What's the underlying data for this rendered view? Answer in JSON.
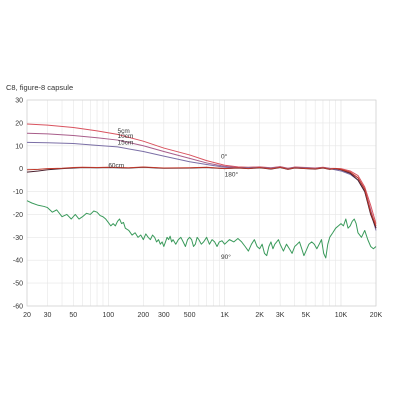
{
  "chart_data": {
    "type": "line",
    "title": "C8, figure-8 capsule",
    "xlabel": "",
    "ylabel": "",
    "x_scale": "log",
    "xlim": [
      20,
      20000
    ],
    "ylim": [
      -60,
      30
    ],
    "grid": true,
    "x_ticks": [
      {
        "v": 20,
        "label": "20"
      },
      {
        "v": 30,
        "label": "30"
      },
      {
        "v": 50,
        "label": "50"
      },
      {
        "v": 100,
        "label": "100"
      },
      {
        "v": 200,
        "label": "200"
      },
      {
        "v": 300,
        "label": "300"
      },
      {
        "v": 500,
        "label": "500"
      },
      {
        "v": 1000,
        "label": "1K"
      },
      {
        "v": 2000,
        "label": "2K"
      },
      {
        "v": 3000,
        "label": "3K"
      },
      {
        "v": 5000,
        "label": "5K"
      },
      {
        "v": 10000,
        "label": "10K"
      },
      {
        "v": 20000,
        "label": "20K"
      }
    ],
    "y_ticks": [
      30,
      20,
      10,
      0,
      -10,
      -20,
      -30,
      -40,
      -50,
      -60
    ],
    "annotations": [
      {
        "text": "5cm",
        "x": 120,
        "y": 15.5
      },
      {
        "text": "10cm",
        "x": 120,
        "y": 13.5
      },
      {
        "text": "15cm",
        "x": 120,
        "y": 10.5
      },
      {
        "text": "0°",
        "x": 930,
        "y": 4.5
      },
      {
        "text": "180°",
        "x": 1000,
        "y": -3.5
      },
      {
        "text": "60cm",
        "x": 100,
        "y": 0.5
      },
      {
        "text": "90°",
        "x": 930,
        "y": -39.5
      }
    ],
    "series": [
      {
        "color": "#d9535f",
        "points": [
          [
            20,
            19.5
          ],
          [
            30,
            19
          ],
          [
            50,
            18
          ],
          [
            80,
            16.5
          ],
          [
            120,
            15
          ],
          [
            200,
            12
          ],
          [
            300,
            9
          ],
          [
            500,
            6
          ],
          [
            700,
            3.5
          ],
          [
            1000,
            1.5
          ],
          [
            1300,
            0.8
          ],
          [
            1600,
            0.6
          ],
          [
            2000,
            0.8
          ],
          [
            2500,
            0.4
          ],
          [
            3000,
            0.9
          ],
          [
            3500,
            0.2
          ],
          [
            4000,
            0.7
          ],
          [
            5000,
            0.5
          ],
          [
            6000,
            0.3
          ],
          [
            7000,
            0.6
          ],
          [
            8000,
            0.2
          ],
          [
            10000,
            0
          ],
          [
            12000,
            -1
          ],
          [
            14000,
            -3
          ],
          [
            16000,
            -8
          ],
          [
            18000,
            -16
          ],
          [
            20000,
            -24
          ]
        ]
      },
      {
        "color": "#a85d8a",
        "points": [
          [
            20,
            15.5
          ],
          [
            30,
            15.2
          ],
          [
            50,
            14.5
          ],
          [
            80,
            13.5
          ],
          [
            120,
            12.5
          ],
          [
            200,
            10
          ],
          [
            300,
            7.5
          ],
          [
            500,
            4.5
          ],
          [
            700,
            2.5
          ],
          [
            1000,
            1
          ],
          [
            1300,
            0.5
          ],
          [
            1600,
            0.5
          ],
          [
            2000,
            0.6
          ],
          [
            2500,
            0.3
          ],
          [
            3000,
            0.8
          ],
          [
            3500,
            0.1
          ],
          [
            4000,
            0.6
          ],
          [
            5000,
            0.4
          ],
          [
            6000,
            0.2
          ],
          [
            7000,
            0.5
          ],
          [
            8000,
            0.1
          ],
          [
            10000,
            -0.5
          ],
          [
            12000,
            -2
          ],
          [
            14000,
            -4
          ],
          [
            16000,
            -9
          ],
          [
            18000,
            -18
          ],
          [
            20000,
            -26
          ]
        ]
      },
      {
        "color": "#7b6fa6",
        "points": [
          [
            20,
            11.5
          ],
          [
            30,
            11.3
          ],
          [
            50,
            11
          ],
          [
            80,
            10.2
          ],
          [
            120,
            9.5
          ],
          [
            200,
            7.5
          ],
          [
            300,
            5.5
          ],
          [
            500,
            3
          ],
          [
            700,
            1.8
          ],
          [
            1000,
            0.6
          ],
          [
            1300,
            0.3
          ],
          [
            1600,
            0.4
          ],
          [
            2000,
            0.5
          ],
          [
            2500,
            0.2
          ],
          [
            3000,
            0.6
          ],
          [
            3500,
            0
          ],
          [
            4000,
            0.5
          ],
          [
            5000,
            0.3
          ],
          [
            6000,
            0.1
          ],
          [
            7000,
            0.4
          ],
          [
            8000,
            0
          ],
          [
            10000,
            -1
          ],
          [
            12000,
            -2.5
          ],
          [
            14000,
            -5
          ],
          [
            16000,
            -10
          ],
          [
            18000,
            -19
          ],
          [
            20000,
            -27
          ]
        ]
      },
      {
        "color": "#4a1f2c",
        "points": [
          [
            20,
            -1.5
          ],
          [
            25,
            -1
          ],
          [
            30,
            -0.5
          ],
          [
            40,
            0
          ],
          [
            50,
            0.3
          ],
          [
            60,
            0.5
          ],
          [
            80,
            0.4
          ],
          [
            100,
            0.5
          ],
          [
            150,
            0.3
          ],
          [
            200,
            0.6
          ],
          [
            300,
            0.2
          ],
          [
            500,
            0.3
          ],
          [
            700,
            0.5
          ],
          [
            1000,
            0
          ],
          [
            1300,
            0.3
          ],
          [
            1600,
            0
          ],
          [
            2000,
            0.4
          ],
          [
            2500,
            -0.2
          ],
          [
            3000,
            0.5
          ],
          [
            3500,
            -0.3
          ],
          [
            4000,
            0.3
          ],
          [
            5000,
            0
          ],
          [
            6000,
            -0.2
          ],
          [
            7000,
            0.3
          ],
          [
            8000,
            -0.3
          ],
          [
            9000,
            0
          ],
          [
            10000,
            -0.5
          ],
          [
            12000,
            -2
          ],
          [
            14000,
            -5
          ],
          [
            16000,
            -10
          ],
          [
            18000,
            -20
          ],
          [
            20000,
            -26
          ]
        ]
      },
      {
        "color": "#c0392b",
        "points": [
          [
            20,
            -0.5
          ],
          [
            25,
            -0.3
          ],
          [
            30,
            0
          ],
          [
            40,
            0.2
          ],
          [
            50,
            0.5
          ],
          [
            60,
            0.6
          ],
          [
            80,
            0.5
          ],
          [
            100,
            0.6
          ],
          [
            150,
            0.4
          ],
          [
            200,
            0.7
          ],
          [
            300,
            0.3
          ],
          [
            500,
            0.4
          ],
          [
            700,
            0.6
          ],
          [
            1000,
            0.1
          ],
          [
            1300,
            0.4
          ],
          [
            1600,
            0.1
          ],
          [
            2000,
            0.5
          ],
          [
            2500,
            -0.1
          ],
          [
            3000,
            0.6
          ],
          [
            3500,
            -0.2
          ],
          [
            4000,
            0.4
          ],
          [
            5000,
            0.1
          ],
          [
            6000,
            -0.1
          ],
          [
            7000,
            0.4
          ],
          [
            8000,
            -0.2
          ],
          [
            9000,
            0.1
          ],
          [
            10000,
            -0.3
          ],
          [
            12000,
            -1.5
          ],
          [
            14000,
            -4
          ],
          [
            16000,
            -9
          ],
          [
            18000,
            -19
          ],
          [
            20000,
            -25
          ]
        ]
      },
      {
        "color": "#3a9a5b",
        "points": [
          [
            20,
            -14
          ],
          [
            22,
            -15
          ],
          [
            25,
            -16
          ],
          [
            28,
            -16.5
          ],
          [
            30,
            -17
          ],
          [
            33,
            -19
          ],
          [
            36,
            -18
          ],
          [
            40,
            -21
          ],
          [
            44,
            -20
          ],
          [
            48,
            -22
          ],
          [
            52,
            -20
          ],
          [
            56,
            -22
          ],
          [
            60,
            -21
          ],
          [
            65,
            -19.5
          ],
          [
            70,
            -20
          ],
          [
            75,
            -18.5
          ],
          [
            80,
            -19
          ],
          [
            85,
            -20.5
          ],
          [
            90,
            -21
          ],
          [
            95,
            -22
          ],
          [
            100,
            -23.5
          ],
          [
            105,
            -25
          ],
          [
            110,
            -24
          ],
          [
            115,
            -25
          ],
          [
            120,
            -23
          ],
          [
            125,
            -22
          ],
          [
            130,
            -24
          ],
          [
            135,
            -23.5
          ],
          [
            140,
            -26
          ],
          [
            150,
            -27
          ],
          [
            160,
            -29
          ],
          [
            170,
            -28
          ],
          [
            180,
            -30
          ],
          [
            190,
            -29
          ],
          [
            200,
            -31
          ],
          [
            210,
            -28.5
          ],
          [
            220,
            -30
          ],
          [
            230,
            -31
          ],
          [
            240,
            -29
          ],
          [
            250,
            -30
          ],
          [
            260,
            -32
          ],
          [
            270,
            -31
          ],
          [
            280,
            -33
          ],
          [
            290,
            -32
          ],
          [
            300,
            -34
          ],
          [
            310,
            -32
          ],
          [
            320,
            -30
          ],
          [
            330,
            -31
          ],
          [
            340,
            -29.5
          ],
          [
            350,
            -32
          ],
          [
            360,
            -31
          ],
          [
            380,
            -33
          ],
          [
            400,
            -31
          ],
          [
            420,
            -30
          ],
          [
            440,
            -32
          ],
          [
            460,
            -34
          ],
          [
            480,
            -31
          ],
          [
            500,
            -30
          ],
          [
            520,
            -31
          ],
          [
            540,
            -34
          ],
          [
            560,
            -33
          ],
          [
            580,
            -30
          ],
          [
            600,
            -31
          ],
          [
            630,
            -33
          ],
          [
            660,
            -32
          ],
          [
            700,
            -30
          ],
          [
            740,
            -33
          ],
          [
            780,
            -31
          ],
          [
            820,
            -32
          ],
          [
            860,
            -34
          ],
          [
            900,
            -32
          ],
          [
            950,
            -31.5
          ],
          [
            1000,
            -33
          ],
          [
            1100,
            -31
          ],
          [
            1200,
            -32
          ],
          [
            1300,
            -30.5
          ],
          [
            1400,
            -32
          ],
          [
            1500,
            -34
          ],
          [
            1600,
            -36
          ],
          [
            1700,
            -33
          ],
          [
            1800,
            -31
          ],
          [
            1900,
            -34
          ],
          [
            2000,
            -35
          ],
          [
            2100,
            -33
          ],
          [
            2200,
            -37
          ],
          [
            2300,
            -38
          ],
          [
            2400,
            -34
          ],
          [
            2500,
            -32
          ],
          [
            2600,
            -35
          ],
          [
            2700,
            -33
          ],
          [
            2800,
            -32
          ],
          [
            2900,
            -31
          ],
          [
            3000,
            -33
          ],
          [
            3200,
            -36
          ],
          [
            3400,
            -33
          ],
          [
            3600,
            -35
          ],
          [
            3800,
            -37
          ],
          [
            4000,
            -34
          ],
          [
            4200,
            -33
          ],
          [
            4400,
            -32
          ],
          [
            4600,
            -35
          ],
          [
            4800,
            -38
          ],
          [
            5000,
            -36
          ],
          [
            5300,
            -33
          ],
          [
            5600,
            -32
          ],
          [
            5900,
            -33
          ],
          [
            6200,
            -35
          ],
          [
            6500,
            -33
          ],
          [
            6800,
            -31
          ],
          [
            7100,
            -37
          ],
          [
            7400,
            -39
          ],
          [
            7700,
            -33
          ],
          [
            8000,
            -30
          ],
          [
            8500,
            -28
          ],
          [
            9000,
            -26
          ],
          [
            9500,
            -25
          ],
          [
            10000,
            -24
          ],
          [
            10500,
            -25
          ],
          [
            11000,
            -22
          ],
          [
            11500,
            -26
          ],
          [
            12000,
            -25
          ],
          [
            12500,
            -23
          ],
          [
            13000,
            -22
          ],
          [
            13500,
            -24
          ],
          [
            14000,
            -28
          ],
          [
            15000,
            -30
          ],
          [
            16000,
            -27
          ],
          [
            17000,
            -31
          ],
          [
            18000,
            -34
          ],
          [
            19000,
            -35
          ],
          [
            20000,
            -34
          ]
        ]
      }
    ]
  }
}
